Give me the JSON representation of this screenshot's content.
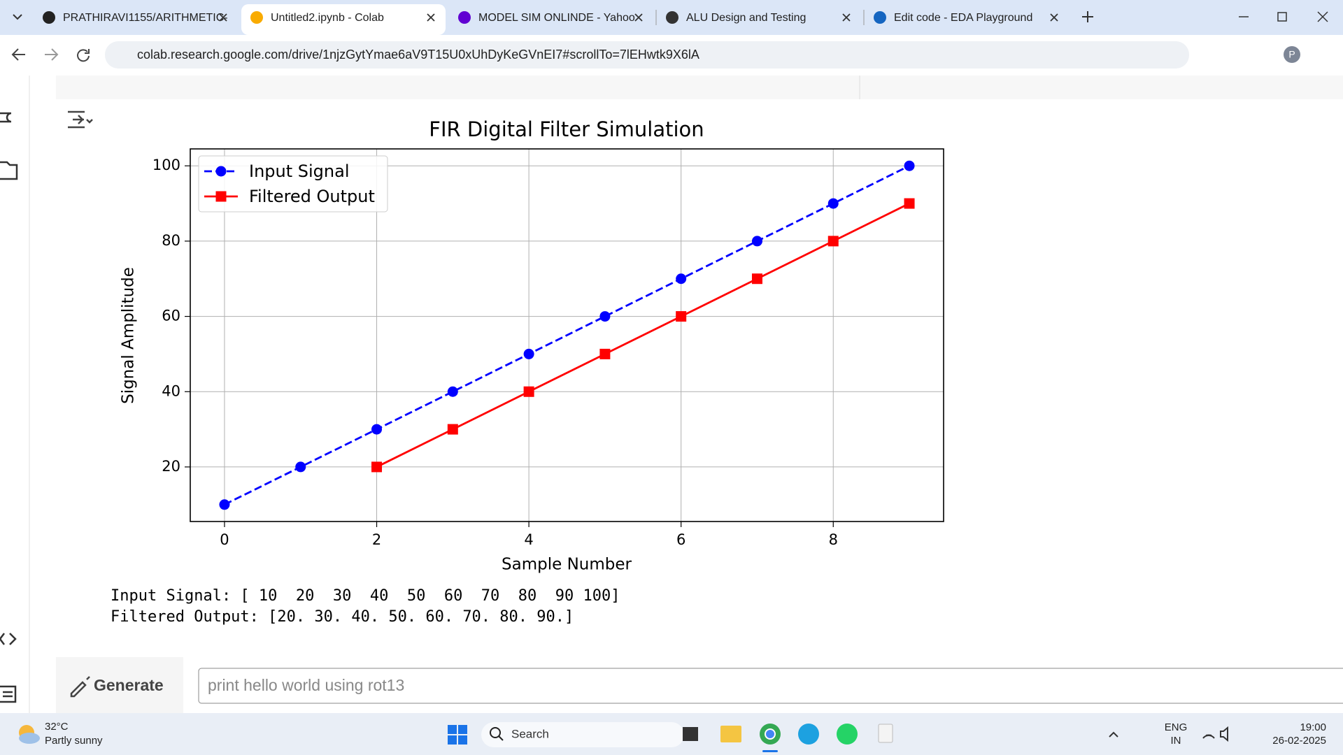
{
  "browser": {
    "tabs": [
      "PRATHIRAVI1155/ARITHMETIC-",
      "Untitled2.ipynb - Colab",
      "MODEL SIM ONLINDE - Yahoo",
      "ALU Design and Testing",
      "Edit code - EDA Playground"
    ],
    "active_tab": 1,
    "url": "colab.research.google.com/drive/1njzGytYmae6aV9T15U0xUhDyKeGVnEI7#scrollTo=7lEHwtk9X6lA",
    "profile": "P"
  },
  "chart_data": {
    "type": "line",
    "title": "FIR Digital Filter Simulation",
    "xlabel": "Sample Number",
    "ylabel": "Signal Amplitude",
    "x": [
      0,
      1,
      2,
      3,
      4,
      5,
      6,
      7,
      8,
      9
    ],
    "series": [
      {
        "name": "Input Signal",
        "color": "#0000ff",
        "marker": "circle",
        "linestyle": "dashed",
        "values": [
          10,
          20,
          30,
          40,
          50,
          60,
          70,
          80,
          90,
          100
        ]
      },
      {
        "name": "Filtered Output",
        "color": "#ff0000",
        "marker": "square",
        "linestyle": "solid",
        "values": [
          null,
          null,
          20,
          30,
          40,
          50,
          60,
          70,
          80,
          90
        ]
      }
    ],
    "xlim": [
      -0.45,
      9.45
    ],
    "ylim": [
      5.5,
      104.5
    ],
    "xticks": [
      0,
      2,
      4,
      6,
      8
    ],
    "yticks": [
      20,
      40,
      60,
      80,
      100
    ],
    "grid": true,
    "legend": "upper left"
  },
  "output": {
    "lines": [
      "Input Signal: [ 10  20  30  40  50  60  70  80  90 100]",
      "Filtered Output: [20. 30. 40. 50. 60. 70. 80. 90.]"
    ]
  },
  "generate": {
    "button": "Generate",
    "placeholder": "print hello world using rot13"
  },
  "taskbar": {
    "temperature": "32°C",
    "weather": "Partly sunny",
    "search": "Search",
    "language": "ENG",
    "region": "IN",
    "time": "19:00",
    "date": "26-02-2025"
  }
}
